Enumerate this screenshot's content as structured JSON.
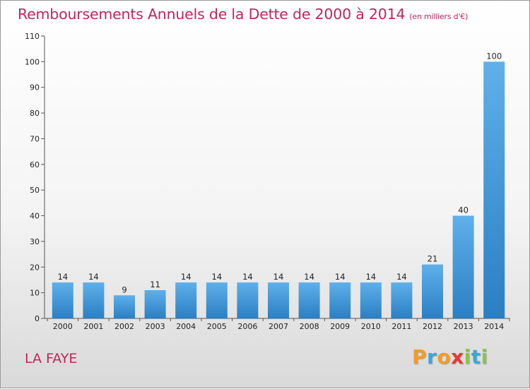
{
  "chart_data": {
    "type": "bar",
    "title": "Remboursements Annuels de la Dette de 2000 à 2014",
    "subtitle": "(en milliers d'€)",
    "categories": [
      "2000",
      "2001",
      "2002",
      "2003",
      "2004",
      "2005",
      "2006",
      "2007",
      "2008",
      "2009",
      "2010",
      "2011",
      "2012",
      "2013",
      "2014"
    ],
    "values": [
      14,
      14,
      9,
      11,
      14,
      14,
      14,
      14,
      14,
      14,
      14,
      14,
      21,
      40,
      100
    ],
    "ylim": [
      0,
      110
    ],
    "yticks": [
      0,
      10,
      20,
      30,
      40,
      50,
      60,
      70,
      80,
      90,
      100,
      110
    ],
    "grid": false,
    "bar_color": "#4a9fdf"
  },
  "footer": {
    "commune": "LA FAYE",
    "brand_letters": [
      {
        "ch": "P",
        "color": "#f39c2a"
      },
      {
        "ch": "r",
        "color": "#3aa6dc"
      },
      {
        "ch": "o",
        "color": "#f39c2a"
      },
      {
        "ch": "x",
        "color": "#e53935"
      },
      {
        "ch": "i",
        "color": "#8bc34a"
      },
      {
        "ch": "t",
        "color": "#3aa6dc"
      },
      {
        "ch": "i",
        "color": "#8bc34a"
      }
    ]
  }
}
